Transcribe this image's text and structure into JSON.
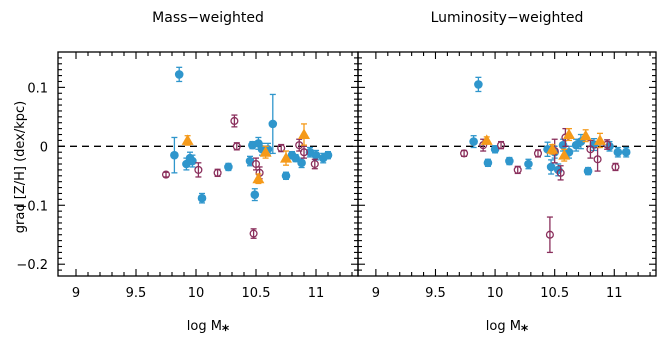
{
  "chart_data": {
    "type": "scatter",
    "colors": {
      "blue_filled": "#2f96cc",
      "purple_open": "#8a2f5c",
      "orange_triangle": "#f59a1a"
    },
    "shared": {
      "xlabel_main": "log M",
      "xlabel_sub": "*",
      "ylabel": "grad [Z/H] (dex/kpc)",
      "xlim": [
        8.85,
        11.35
      ],
      "ylim": [
        -0.22,
        0.16
      ],
      "xticks": [
        {
          "v": 9,
          "t": "9"
        },
        {
          "v": 9.5,
          "t": "9.5"
        },
        {
          "v": 10,
          "t": "10"
        },
        {
          "v": 10.5,
          "t": "10.5"
        },
        {
          "v": 11,
          "t": "11"
        }
      ],
      "yticks": [
        {
          "v": 0.1,
          "t": "0.1"
        },
        {
          "v": 0,
          "t": "0"
        },
        {
          "v": -0.1,
          "t": "−0.1"
        },
        {
          "v": -0.2,
          "t": "−0.2"
        }
      ],
      "zero_line": 0
    },
    "panels": [
      {
        "title": "Mass−weighted",
        "series": [
          {
            "marker": "filled-circle",
            "points": [
              {
                "x": 9.82,
                "y": -0.015,
                "e": 0.03
              },
              {
                "x": 9.86,
                "y": 0.122,
                "e": 0.012
              },
              {
                "x": 9.92,
                "y": -0.03,
                "e": 0.01
              },
              {
                "x": 9.95,
                "y": -0.02,
                "e": 0.01
              },
              {
                "x": 9.97,
                "y": -0.025,
                "e": 0.01
              },
              {
                "x": 10.05,
                "y": -0.088,
                "e": 0.008
              },
              {
                "x": 10.27,
                "y": -0.035,
                "e": 0.006
              },
              {
                "x": 10.45,
                "y": -0.025,
                "e": 0.008
              },
              {
                "x": 10.47,
                "y": 0.002,
                "e": 0.006
              },
              {
                "x": 10.49,
                "y": -0.082,
                "e": 0.01
              },
              {
                "x": 10.52,
                "y": 0.005,
                "e": 0.01
              },
              {
                "x": 10.55,
                "y": -0.005,
                "e": 0.01
              },
              {
                "x": 10.6,
                "y": -0.005,
                "e": 0.01
              },
              {
                "x": 10.64,
                "y": 0.038,
                "e": 0.05
              },
              {
                "x": 10.75,
                "y": -0.05,
                "e": 0.006
              },
              {
                "x": 10.8,
                "y": -0.015,
                "e": 0.006
              },
              {
                "x": 10.83,
                "y": -0.02,
                "e": 0.006
              },
              {
                "x": 10.88,
                "y": -0.028,
                "e": 0.008
              },
              {
                "x": 10.95,
                "y": -0.01,
                "e": 0.008
              },
              {
                "x": 11.0,
                "y": -0.015,
                "e": 0.008
              },
              {
                "x": 11.06,
                "y": -0.02,
                "e": 0.008
              },
              {
                "x": 11.1,
                "y": -0.015,
                "e": 0.006
              }
            ]
          },
          {
            "marker": "open-circle",
            "points": [
              {
                "x": 9.75,
                "y": -0.048,
                "e": 0.004
              },
              {
                "x": 10.02,
                "y": -0.04,
                "e": 0.012
              },
              {
                "x": 10.18,
                "y": -0.045,
                "e": 0.006
              },
              {
                "x": 10.32,
                "y": 0.043,
                "e": 0.01
              },
              {
                "x": 10.34,
                "y": 0.0,
                "e": 0.006
              },
              {
                "x": 10.48,
                "y": -0.148,
                "e": 0.008
              },
              {
                "x": 10.5,
                "y": -0.03,
                "e": 0.01
              },
              {
                "x": 10.53,
                "y": -0.045,
                "e": 0.01
              },
              {
                "x": 10.71,
                "y": -0.003,
                "e": 0.006
              },
              {
                "x": 10.86,
                "y": 0.002,
                "e": 0.01
              },
              {
                "x": 10.9,
                "y": -0.01,
                "e": 0.01
              },
              {
                "x": 10.99,
                "y": -0.03,
                "e": 0.008
              }
            ]
          },
          {
            "marker": "triangle",
            "points": [
              {
                "x": 9.93,
                "y": 0.01,
                "e": 0.008
              },
              {
                "x": 10.52,
                "y": -0.055,
                "e": 0.008
              },
              {
                "x": 10.58,
                "y": -0.01,
                "e": 0.01
              },
              {
                "x": 10.75,
                "y": -0.02,
                "e": 0.012
              },
              {
                "x": 10.9,
                "y": 0.02,
                "e": 0.018
              }
            ]
          }
        ]
      },
      {
        "title": "Luminosity−weighted",
        "series": [
          {
            "marker": "filled-circle",
            "points": [
              {
                "x": 9.82,
                "y": 0.008,
                "e": 0.01
              },
              {
                "x": 9.86,
                "y": 0.105,
                "e": 0.012
              },
              {
                "x": 9.94,
                "y": -0.028,
                "e": 0.006
              },
              {
                "x": 10.0,
                "y": -0.005,
                "e": 0.006
              },
              {
                "x": 10.12,
                "y": -0.025,
                "e": 0.006
              },
              {
                "x": 10.28,
                "y": -0.03,
                "e": 0.008
              },
              {
                "x": 10.44,
                "y": -0.005,
                "e": 0.012
              },
              {
                "x": 10.47,
                "y": -0.035,
                "e": 0.012
              },
              {
                "x": 10.5,
                "y": -0.01,
                "e": 0.01
              },
              {
                "x": 10.53,
                "y": -0.04,
                "e": 0.01
              },
              {
                "x": 10.57,
                "y": 0.002,
                "e": 0.01
              },
              {
                "x": 10.62,
                "y": -0.01,
                "e": 0.01
              },
              {
                "x": 10.68,
                "y": 0.002,
                "e": 0.01
              },
              {
                "x": 10.72,
                "y": 0.008,
                "e": 0.012
              },
              {
                "x": 10.78,
                "y": -0.042,
                "e": 0.006
              },
              {
                "x": 10.83,
                "y": 0.003,
                "e": 0.01
              },
              {
                "x": 10.96,
                "y": 0.0,
                "e": 0.008
              },
              {
                "x": 11.03,
                "y": -0.01,
                "e": 0.008
              },
              {
                "x": 11.1,
                "y": -0.01,
                "e": 0.008
              }
            ]
          },
          {
            "marker": "open-circle",
            "points": [
              {
                "x": 9.74,
                "y": -0.012,
                "e": 0.005
              },
              {
                "x": 9.9,
                "y": 0.002,
                "e": 0.01
              },
              {
                "x": 10.05,
                "y": 0.002,
                "e": 0.006
              },
              {
                "x": 10.19,
                "y": -0.04,
                "e": 0.006
              },
              {
                "x": 10.36,
                "y": -0.012,
                "e": 0.006
              },
              {
                "x": 10.46,
                "y": -0.15,
                "e": 0.03
              },
              {
                "x": 10.5,
                "y": -0.008,
                "e": 0.02
              },
              {
                "x": 10.55,
                "y": -0.045,
                "e": 0.012
              },
              {
                "x": 10.59,
                "y": 0.015,
                "e": 0.015
              },
              {
                "x": 10.8,
                "y": -0.005,
                "e": 0.015
              },
              {
                "x": 10.86,
                "y": -0.022,
                "e": 0.02
              },
              {
                "x": 10.94,
                "y": 0.003,
                "e": 0.008
              },
              {
                "x": 11.01,
                "y": -0.035,
                "e": 0.006
              }
            ]
          },
          {
            "marker": "triangle",
            "points": [
              {
                "x": 9.93,
                "y": 0.01,
                "e": 0.006
              },
              {
                "x": 10.48,
                "y": -0.005,
                "e": 0.008
              },
              {
                "x": 10.58,
                "y": -0.015,
                "e": 0.01
              },
              {
                "x": 10.62,
                "y": 0.02,
                "e": 0.01
              },
              {
                "x": 10.76,
                "y": 0.018,
                "e": 0.01
              },
              {
                "x": 10.88,
                "y": 0.01,
                "e": 0.012
              }
            ]
          }
        ]
      }
    ]
  }
}
